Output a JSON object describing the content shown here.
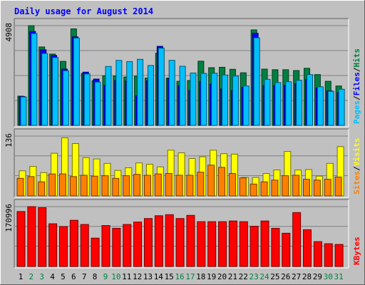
{
  "chart_data": [
    {
      "type": "bar",
      "title": "Daily usage for August 2014",
      "panel": "pages-files-hits",
      "categories": [
        "1",
        "2",
        "3",
        "4",
        "5",
        "6",
        "7",
        "8",
        "9",
        "10",
        "11",
        "12",
        "13",
        "14",
        "15",
        "16",
        "17",
        "18",
        "19",
        "20",
        "21",
        "22",
        "23",
        "24",
        "25",
        "26",
        "27",
        "28",
        "29",
        "30",
        "31"
      ],
      "weekend_days": [
        "2",
        "3",
        "9",
        "10",
        "16",
        "17",
        "23",
        "24",
        "30",
        "31"
      ],
      "ymax_label": "4908",
      "ylim": [
        0,
        4908
      ],
      "grid": true,
      "legend_parts": [
        "Pages",
        "Files",
        "Hits"
      ],
      "series": [
        {
          "name": "Hits",
          "color": "#008040",
          "values": [
            1440,
            4908,
            3860,
            3510,
            3150,
            4750,
            2560,
            2200,
            2440,
            2430,
            2380,
            2420,
            2330,
            3550,
            2330,
            2170,
            2210,
            3160,
            2840,
            2860,
            2760,
            2590,
            4700,
            2770,
            2740,
            2740,
            2700,
            2810,
            2500,
            2170,
            1940
          ]
        },
        {
          "name": "Files",
          "color": "#0000ff",
          "values": [
            1420,
            4620,
            3720,
            3440,
            2770,
            4360,
            2620,
            2280,
            1970,
            2210,
            2180,
            1450,
            2190,
            3890,
            2300,
            1960,
            1720,
            2160,
            2030,
            1800,
            1710,
            1870,
            4530,
            1960,
            1960,
            1980,
            2050,
            2250,
            1840,
            1700,
            1620
          ]
        },
        {
          "name": "Pages",
          "color": "#00c0ff",
          "values": [
            1400,
            4520,
            3540,
            3340,
            2690,
            4300,
            2530,
            2130,
            2900,
            3200,
            3140,
            3250,
            2950,
            3800,
            3200,
            2910,
            2580,
            2560,
            2570,
            2480,
            2430,
            1940,
            4310,
            2270,
            2110,
            2150,
            2220,
            2500,
            1900,
            1680,
            1780
          ]
        }
      ]
    },
    {
      "type": "bar",
      "panel": "visits-sites",
      "categories": [
        "1",
        "2",
        "3",
        "4",
        "5",
        "6",
        "7",
        "8",
        "9",
        "10",
        "11",
        "12",
        "13",
        "14",
        "15",
        "16",
        "17",
        "18",
        "19",
        "20",
        "21",
        "22",
        "23",
        "24",
        "25",
        "26",
        "27",
        "28",
        "29",
        "30",
        "31"
      ],
      "ymax_label": "136",
      "ylim": [
        0,
        136
      ],
      "grid": true,
      "legend_parts": [
        "Sites",
        "Visits"
      ],
      "series": [
        {
          "name": "Visits",
          "color": "#ffff00",
          "values": [
            57,
            67,
            53,
            97,
            132,
            119,
            87,
            84,
            74,
            58,
            64,
            75,
            72,
            66,
            104,
            98,
            85,
            89,
            104,
            96,
            95,
            42,
            42,
            51,
            59,
            101,
            59,
            60,
            45,
            74,
            112
          ]
        },
        {
          "name": "Sites",
          "color": "#ff8000",
          "values": [
            40,
            44,
            32,
            50,
            50,
            44,
            47,
            45,
            46,
            40,
            46,
            49,
            47,
            50,
            51,
            47,
            47,
            54,
            70,
            65,
            51,
            41,
            27,
            32,
            36,
            46,
            47,
            38,
            36,
            38,
            43
          ]
        }
      ]
    },
    {
      "type": "bar",
      "panel": "kbytes",
      "categories": [
        "1",
        "2",
        "3",
        "4",
        "5",
        "6",
        "7",
        "8",
        "9",
        "10",
        "11",
        "12",
        "13",
        "14",
        "15",
        "16",
        "17",
        "18",
        "19",
        "20",
        "21",
        "22",
        "23",
        "24",
        "25",
        "26",
        "27",
        "28",
        "29",
        "30",
        "31"
      ],
      "ymax_label": "170996",
      "ylim": [
        0,
        170996
      ],
      "grid": true,
      "legend_parts": [
        "KBytes"
      ],
      "series": [
        {
          "name": "KBytes",
          "color": "#ff0000",
          "values": [
            157000,
            173000,
            168000,
            122000,
            114000,
            132000,
            120000,
            81000,
            117000,
            109000,
            120000,
            127000,
            137000,
            145000,
            148000,
            137000,
            146000,
            128000,
            128000,
            128000,
            130000,
            128000,
            115000,
            130000,
            109000,
            95000,
            154000,
            105000,
            71000,
            65000,
            63000
          ]
        }
      ]
    }
  ]
}
